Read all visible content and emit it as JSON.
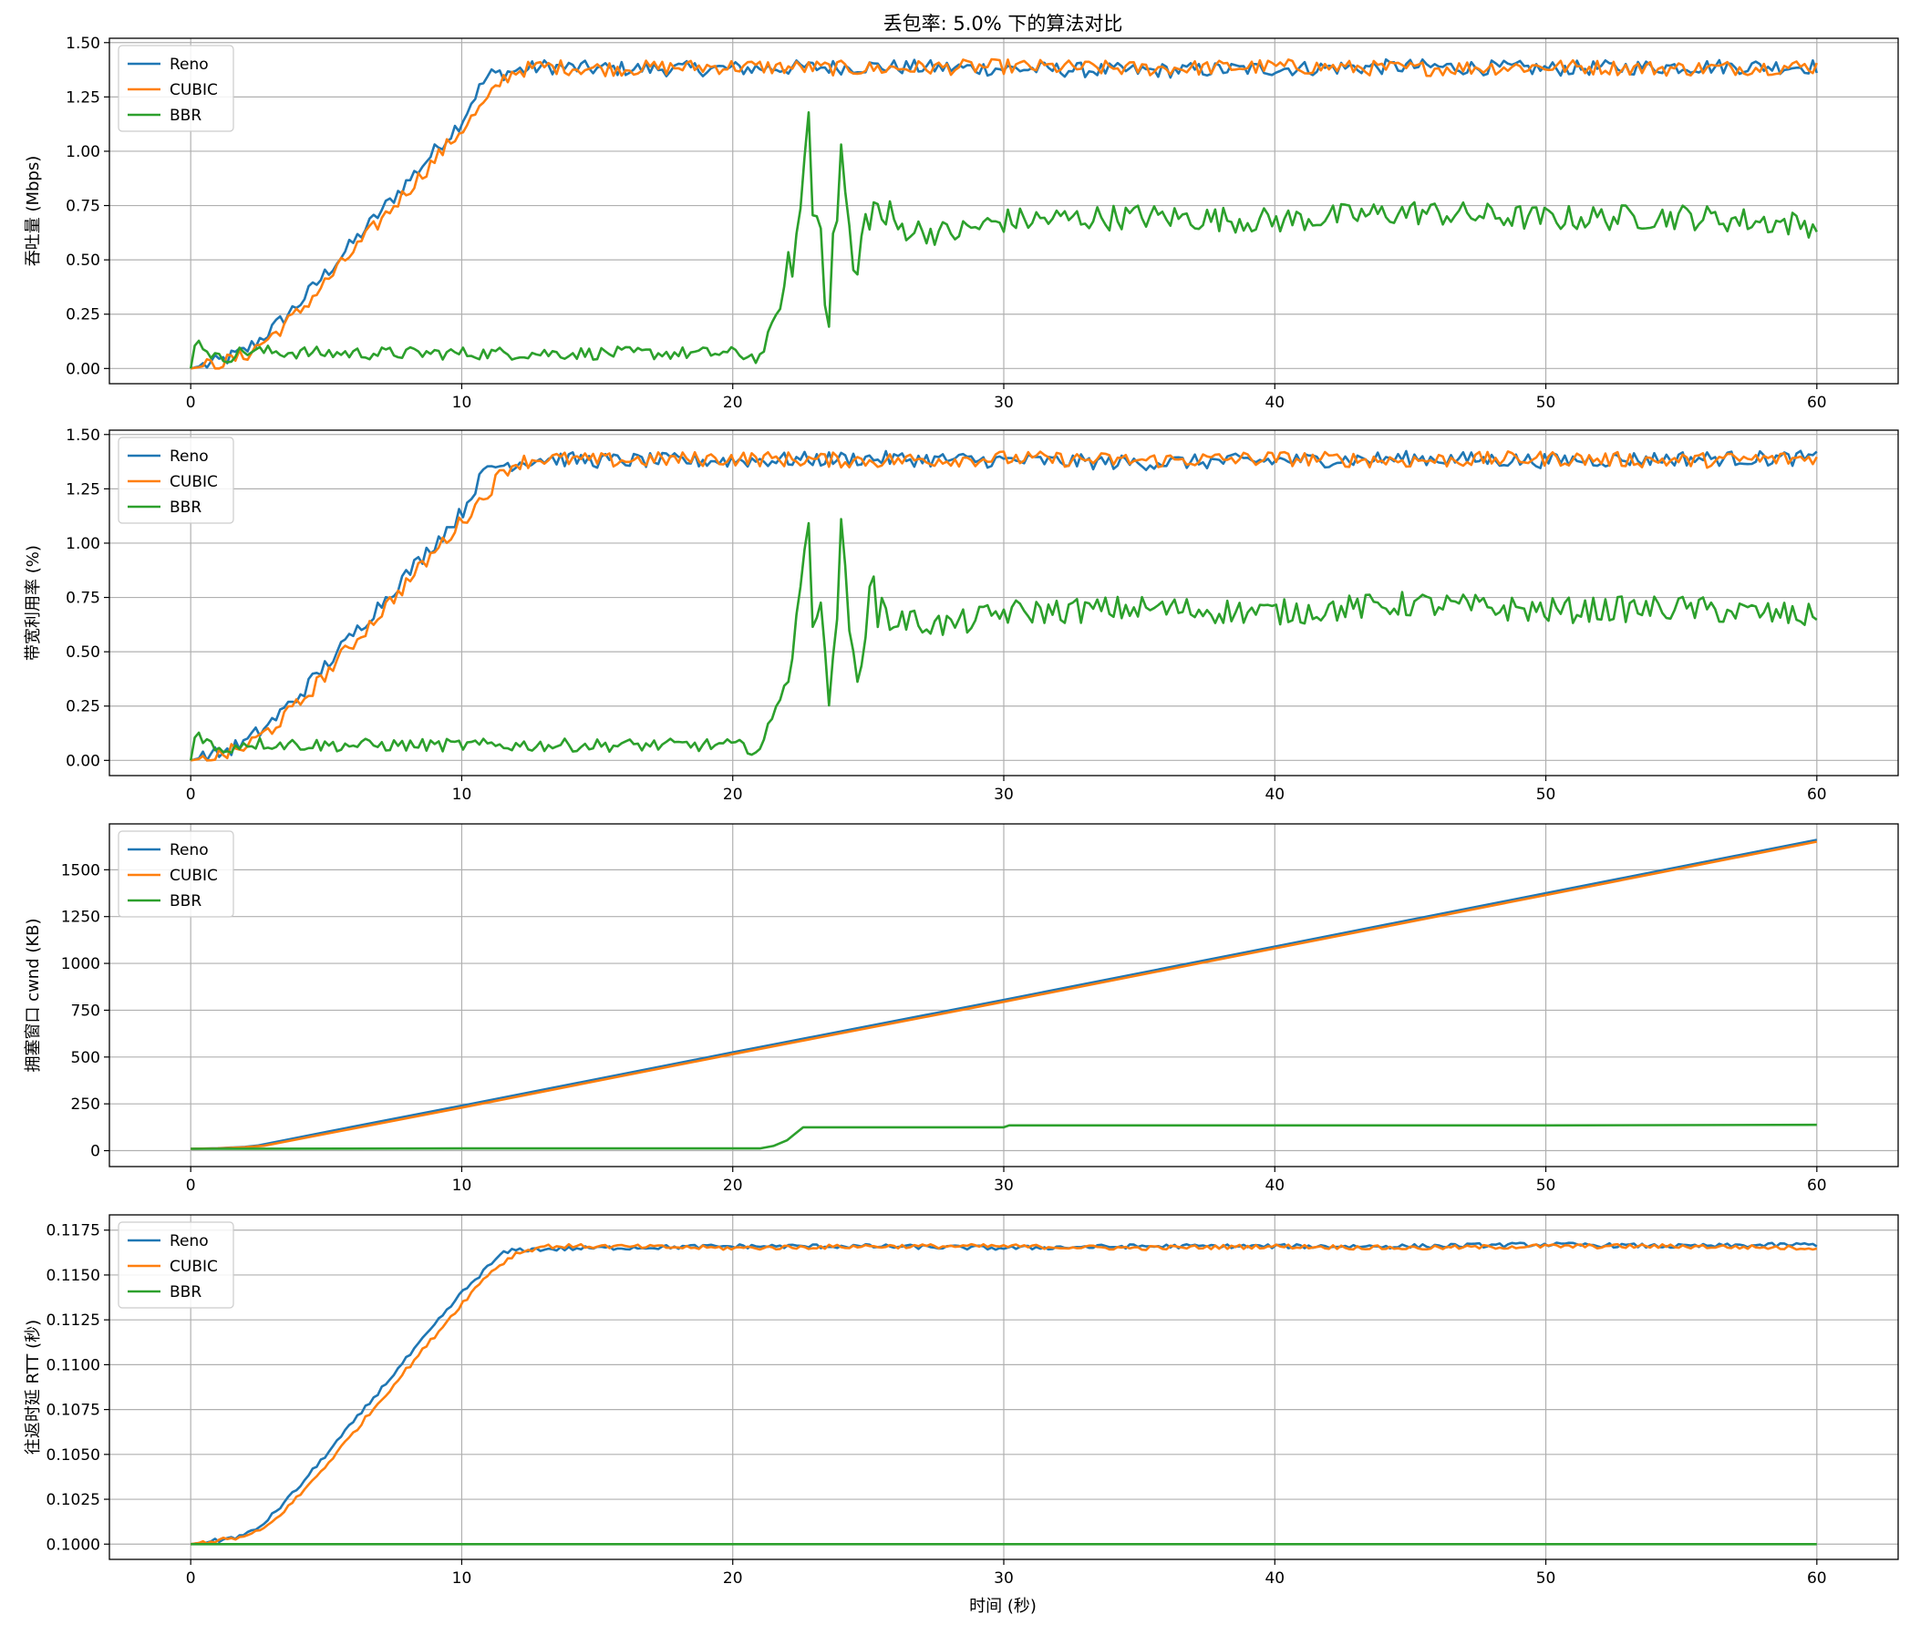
{
  "figure": {
    "suptitle": "丢包率: 5.0% 下的算法对比",
    "xlabel": "时间 (秒)"
  },
  "colors": {
    "Reno": "#1f77b4",
    "CUBIC": "#ff7f0e",
    "BBR": "#2ca02c",
    "grid": "#b0b0b0",
    "axes": "#000000"
  },
  "chart_data": [
    {
      "type": "line",
      "title": "丢包率: 5.0% 下的算法对比",
      "xlabel": "",
      "ylabel": "吞吐量 (Mbps)",
      "xlim": [
        -3,
        63
      ],
      "ylim": [
        -0.07,
        1.52
      ],
      "xticks": [
        0,
        10,
        20,
        30,
        40,
        50,
        60
      ],
      "yticks": [
        0.0,
        0.25,
        0.5,
        0.75,
        1.0,
        1.25,
        1.5
      ],
      "ytick_labels": [
        "0.00",
        "0.25",
        "0.50",
        "0.75",
        "1.00",
        "1.25",
        "1.50"
      ],
      "grid": true,
      "legend_position": "upper-left",
      "series": [
        {
          "name": "Reno",
          "x": [
            0,
            1,
            2,
            3,
            4,
            5,
            6,
            7,
            8,
            9,
            10,
            10.5,
            11,
            12,
            13,
            15,
            20,
            25,
            30,
            35,
            40,
            45,
            50,
            55,
            60
          ],
          "y": [
            0.0,
            0.03,
            0.08,
            0.18,
            0.3,
            0.44,
            0.58,
            0.72,
            0.86,
            1.0,
            1.14,
            1.26,
            1.35,
            1.37,
            1.39,
            1.38,
            1.38,
            1.39,
            1.38,
            1.37,
            1.38,
            1.39,
            1.38,
            1.39,
            1.39
          ]
        },
        {
          "name": "CUBIC",
          "x": [
            0,
            1,
            2,
            3,
            4,
            5,
            6,
            7,
            8,
            9,
            10,
            11,
            11.5,
            12,
            13,
            15,
            20,
            25,
            30,
            35,
            40,
            45,
            50,
            55,
            60
          ],
          "y": [
            0.0,
            0.02,
            0.06,
            0.15,
            0.26,
            0.4,
            0.54,
            0.68,
            0.82,
            0.96,
            1.1,
            1.24,
            1.33,
            1.37,
            1.39,
            1.38,
            1.39,
            1.38,
            1.39,
            1.38,
            1.39,
            1.38,
            1.39,
            1.38,
            1.39
          ]
        },
        {
          "name": "BBR",
          "x": [
            0,
            0.2,
            1,
            2,
            5,
            10,
            15,
            20,
            21,
            21.5,
            22,
            22.5,
            22.8,
            23,
            23.2,
            23.5,
            24,
            24.5,
            25,
            26,
            28,
            30,
            35,
            40,
            45,
            50,
            55,
            60
          ],
          "y": [
            0.0,
            0.14,
            0.04,
            0.08,
            0.07,
            0.07,
            0.07,
            0.07,
            0.05,
            0.2,
            0.4,
            0.7,
            1.21,
            0.55,
            0.85,
            0.18,
            1.0,
            0.36,
            0.75,
            0.65,
            0.62,
            0.68,
            0.7,
            0.68,
            0.72,
            0.69,
            0.7,
            0.66
          ]
        }
      ]
    },
    {
      "type": "line",
      "xlabel": "",
      "ylabel": "带宽利用率 (%)",
      "xlim": [
        -3,
        63
      ],
      "ylim": [
        -0.07,
        1.52
      ],
      "xticks": [
        0,
        10,
        20,
        30,
        40,
        50,
        60
      ],
      "yticks": [
        0.0,
        0.25,
        0.5,
        0.75,
        1.0,
        1.25,
        1.5
      ],
      "ytick_labels": [
        "0.00",
        "0.25",
        "0.50",
        "0.75",
        "1.00",
        "1.25",
        "1.50"
      ],
      "grid": true,
      "legend_position": "upper-left",
      "series": [
        {
          "name": "Reno",
          "x": [
            0,
            1,
            2,
            3,
            4,
            5,
            6,
            7,
            8,
            9,
            10,
            10.5,
            11,
            12,
            13,
            15,
            20,
            25,
            30,
            35,
            40,
            45,
            50,
            55,
            60
          ],
          "y": [
            0.0,
            0.03,
            0.08,
            0.18,
            0.3,
            0.44,
            0.58,
            0.72,
            0.86,
            1.0,
            1.14,
            1.26,
            1.35,
            1.37,
            1.39,
            1.38,
            1.38,
            1.39,
            1.38,
            1.37,
            1.38,
            1.39,
            1.38,
            1.39,
            1.39
          ]
        },
        {
          "name": "CUBIC",
          "x": [
            0,
            1,
            2,
            3,
            4,
            5,
            6,
            7,
            8,
            9,
            10,
            11,
            11.5,
            12,
            13,
            15,
            20,
            25,
            30,
            35,
            40,
            45,
            50,
            55,
            60
          ],
          "y": [
            0.0,
            0.02,
            0.06,
            0.15,
            0.26,
            0.4,
            0.54,
            0.68,
            0.82,
            0.96,
            1.1,
            1.24,
            1.33,
            1.37,
            1.39,
            1.38,
            1.39,
            1.38,
            1.39,
            1.38,
            1.39,
            1.38,
            1.39,
            1.38,
            1.39
          ]
        },
        {
          "name": "BBR",
          "x": [
            0,
            0.2,
            1,
            2,
            5,
            10,
            15,
            20,
            21,
            21.5,
            22,
            22.5,
            22.8,
            23,
            23.2,
            23.5,
            24,
            24.5,
            25,
            26,
            28,
            30,
            35,
            40,
            45,
            50,
            55,
            60
          ],
          "y": [
            0.0,
            0.14,
            0.04,
            0.08,
            0.07,
            0.07,
            0.07,
            0.07,
            0.05,
            0.2,
            0.4,
            0.7,
            1.21,
            0.55,
            0.85,
            0.18,
            1.0,
            0.36,
            0.75,
            0.65,
            0.62,
            0.68,
            0.7,
            0.68,
            0.72,
            0.69,
            0.7,
            0.66
          ]
        }
      ]
    },
    {
      "type": "line",
      "xlabel": "",
      "ylabel": "拥塞窗口 cwnd (KB)",
      "xlim": [
        -3,
        63
      ],
      "ylim": [
        -85,
        1745
      ],
      "xticks": [
        0,
        10,
        20,
        30,
        40,
        50,
        60
      ],
      "yticks": [
        0,
        250,
        500,
        750,
        1000,
        1250,
        1500
      ],
      "ytick_labels": [
        "0",
        "250",
        "500",
        "750",
        "1000",
        "1250",
        "1500"
      ],
      "grid": true,
      "legend_position": "upper-left",
      "series": [
        {
          "name": "Reno",
          "x": [
            0,
            1,
            2,
            2.5,
            5,
            10,
            20,
            30,
            40,
            50,
            60
          ],
          "y": [
            10,
            13,
            20,
            28,
            100,
            240,
            525,
            805,
            1090,
            1375,
            1660
          ]
        },
        {
          "name": "CUBIC",
          "x": [
            0,
            1,
            2,
            2.7,
            5,
            10,
            20,
            30,
            40,
            50,
            60
          ],
          "y": [
            10,
            12,
            18,
            26,
            90,
            230,
            515,
            795,
            1080,
            1365,
            1650
          ]
        },
        {
          "name": "BBR",
          "x": [
            0,
            10,
            20,
            21,
            21.5,
            22,
            22.3,
            22.6,
            30,
            30.2,
            40,
            50,
            60
          ],
          "y": [
            10,
            12,
            12,
            12,
            25,
            55,
            90,
            125,
            125,
            135,
            135,
            135,
            138
          ]
        }
      ]
    },
    {
      "type": "line",
      "xlabel": "时间 (秒)",
      "ylabel": "往返时延 RTT (秒)",
      "xlim": [
        -3,
        63
      ],
      "ylim": [
        0.09915,
        0.11835
      ],
      "xticks": [
        0,
        10,
        20,
        30,
        40,
        50,
        60
      ],
      "yticks": [
        0.1,
        0.1025,
        0.105,
        0.1075,
        0.11,
        0.1125,
        0.115,
        0.1175
      ],
      "ytick_labels": [
        "0.1000",
        "0.1025",
        "0.1050",
        "0.1075",
        "0.1100",
        "0.1125",
        "0.1150",
        "0.1175"
      ],
      "grid": true,
      "legend_position": "upper-left",
      "series": [
        {
          "name": "Reno",
          "x": [
            0,
            1,
            2,
            2.5,
            3,
            4,
            5,
            6,
            7,
            8,
            9,
            10,
            11,
            11.5,
            12,
            15,
            20,
            25,
            30,
            35,
            40,
            45,
            50,
            55,
            60
          ],
          "y": [
            0.1,
            0.1002,
            0.1005,
            0.1009,
            0.1016,
            0.1032,
            0.105,
            0.1068,
            0.1086,
            0.1104,
            0.1122,
            0.114,
            0.1155,
            0.1162,
            0.1164,
            0.1165,
            0.1166,
            0.1166,
            0.1165,
            0.1166,
            0.1166,
            0.1166,
            0.1167,
            0.1166,
            0.1167
          ]
        },
        {
          "name": "CUBIC",
          "x": [
            0,
            1,
            2,
            2.5,
            3,
            4,
            5,
            6,
            7,
            8,
            9,
            10,
            11,
            12,
            13,
            15,
            20,
            25,
            30,
            35,
            40,
            45,
            50,
            55,
            60
          ],
          "y": [
            0.1,
            0.1002,
            0.1004,
            0.1007,
            0.1012,
            0.1027,
            0.1044,
            0.1062,
            0.108,
            0.1098,
            0.1116,
            0.1134,
            0.1151,
            0.1162,
            0.1166,
            0.1166,
            0.1165,
            0.1166,
            0.1166,
            0.1165,
            0.1166,
            0.1165,
            0.1166,
            0.1166,
            0.1165
          ]
        },
        {
          "name": "BBR",
          "x": [
            0,
            60
          ],
          "y": [
            0.1,
            0.1
          ]
        }
      ]
    }
  ]
}
